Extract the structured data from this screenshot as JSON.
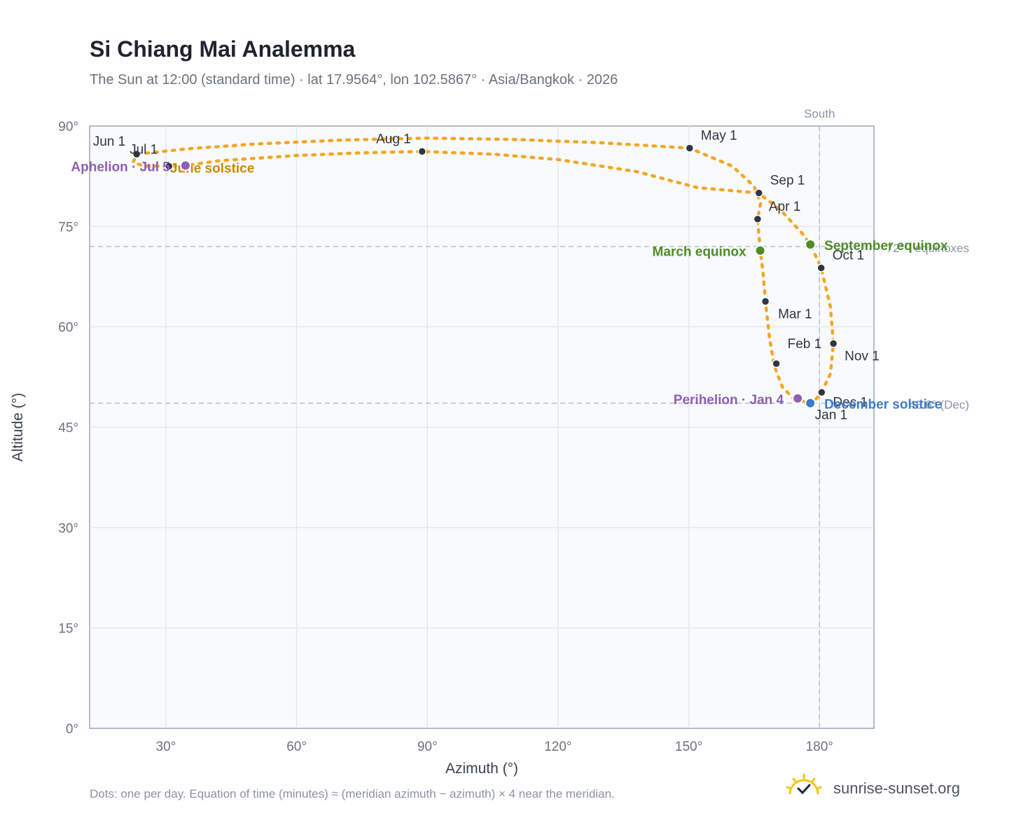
{
  "header": {
    "title": "Si Chiang Mai Analemma",
    "subtitle": "The Sun at 12:00 (standard time) · lat 17.9564°, lon 102.5867° · Asia/Bangkok · 2026"
  },
  "footer": {
    "note": "Dots: one per day. Equation of time (minutes) ≈ (meridian azimuth − azimuth) × 4 near the meridian.",
    "brand": "sunrise-sunset.org",
    "brand_icon": "sun-check-icon"
  },
  "colors": {
    "curve": "#f5a623",
    "month_dot": "#2f3542",
    "solstice_june": "#c98a0d",
    "solstice_december": "#3d7cc9",
    "equinox": "#4e8c2a",
    "apsis": "#8e5fb5",
    "plot_bg": "#f8fafc",
    "grid": "#e3e8ef",
    "reference_line": "#b7bfca",
    "axis_text": "#6b7280"
  },
  "chart_data": {
    "type": "scatter",
    "xlabel": "Azimuth (°)",
    "ylabel": "Altitude (°)",
    "xlim": [
      12.5,
      192.5
    ],
    "ylim": [
      0,
      90
    ],
    "xticks": [
      30,
      60,
      90,
      120,
      150,
      180
    ],
    "xtick_labels": [
      "30°",
      "60°",
      "90°",
      "120°",
      "150°",
      "180°"
    ],
    "yticks": [
      0,
      15,
      30,
      45,
      60,
      75,
      90
    ],
    "ytick_labels": [
      "0°",
      "15°",
      "30°",
      "45°",
      "60°",
      "75°",
      "90°"
    ],
    "grid": true,
    "south_line": {
      "azimuth": 180,
      "label": "South"
    },
    "reference_lines": [
      {
        "altitude": 72.0,
        "label": "72° · equinoxes"
      },
      {
        "altitude": 48.6,
        "label": "48.6° (Dec)"
      }
    ],
    "analemma_path": [
      [
        178.3,
        48.5
      ],
      [
        174.0,
        49.3
      ],
      [
        171.5,
        51.0
      ],
      [
        170.0,
        53.5
      ],
      [
        169.5,
        54.5
      ],
      [
        168.5,
        58.5
      ],
      [
        167.6,
        63.8
      ],
      [
        167.0,
        68.5
      ],
      [
        166.4,
        71.4
      ],
      [
        165.8,
        76.1
      ],
      [
        166.5,
        78.5
      ],
      [
        165.0,
        81.0
      ],
      [
        160.0,
        84.0
      ],
      [
        150.2,
        86.7
      ],
      [
        130.0,
        87.5
      ],
      [
        110.0,
        88.0
      ],
      [
        90.0,
        88.2
      ],
      [
        70.0,
        87.9
      ],
      [
        50.0,
        87.3
      ],
      [
        35.0,
        86.6
      ],
      [
        23.3,
        85.8
      ],
      [
        22.5,
        84.6
      ],
      [
        25.0,
        84.0
      ],
      [
        30.7,
        84.0
      ],
      [
        34.5,
        84.1
      ],
      [
        42.0,
        84.8
      ],
      [
        60.0,
        85.6
      ],
      [
        75.0,
        86.0
      ],
      [
        88.8,
        86.2
      ],
      [
        105.0,
        85.8
      ],
      [
        120.0,
        85.0
      ],
      [
        138.0,
        83.2
      ],
      [
        152.0,
        80.8
      ],
      [
        166.0,
        80.0
      ],
      [
        171.0,
        77.5
      ],
      [
        176.0,
        74.0
      ],
      [
        177.9,
        72.3
      ],
      [
        180.4,
        68.8
      ],
      [
        182.5,
        63.0
      ],
      [
        183.2,
        57.5
      ],
      [
        182.5,
        53.0
      ],
      [
        180.5,
        50.2
      ],
      [
        178.3,
        48.5
      ]
    ],
    "month_markers": [
      {
        "label": "Jan 1",
        "azimuth": 178.3,
        "altitude": 48.5
      },
      {
        "label": "Feb 1",
        "azimuth": 170.1,
        "altitude": 54.5
      },
      {
        "label": "Mar 1",
        "azimuth": 167.6,
        "altitude": 63.8
      },
      {
        "label": "Apr 1",
        "azimuth": 165.8,
        "altitude": 76.1
      },
      {
        "label": "May 1",
        "azimuth": 150.2,
        "altitude": 86.7
      },
      {
        "label": "Jun 1",
        "azimuth": 23.3,
        "altitude": 85.8
      },
      {
        "label": "Jul 1",
        "azimuth": 30.7,
        "altitude": 84.0
      },
      {
        "label": "Aug 1",
        "azimuth": 88.8,
        "altitude": 86.2
      },
      {
        "label": "Sep 1",
        "azimuth": 166.1,
        "altitude": 80.0
      },
      {
        "label": "Oct 1",
        "azimuth": 180.4,
        "altitude": 68.8
      },
      {
        "label": "Nov 1",
        "azimuth": 183.2,
        "altitude": 57.5
      },
      {
        "label": "Dec 1",
        "azimuth": 180.5,
        "altitude": 50.2
      }
    ],
    "events": [
      {
        "label": "June solstice",
        "azimuth": 34.5,
        "altitude": 84.1,
        "kind": "solstice_june"
      },
      {
        "label": "December solstice",
        "azimuth": 177.9,
        "altitude": 48.6,
        "kind": "solstice_december"
      },
      {
        "label": "March equinox",
        "azimuth": 166.4,
        "altitude": 71.4,
        "kind": "equinox"
      },
      {
        "label": "September equinox",
        "azimuth": 177.9,
        "altitude": 72.3,
        "kind": "equinox"
      },
      {
        "label": "Perihelion · Jan 4",
        "azimuth": 175.0,
        "altitude": 49.3,
        "kind": "apsis"
      },
      {
        "label": "Aphelion · Jul 5",
        "azimuth": 34.5,
        "altitude": 84.1,
        "kind": "apsis"
      }
    ]
  }
}
